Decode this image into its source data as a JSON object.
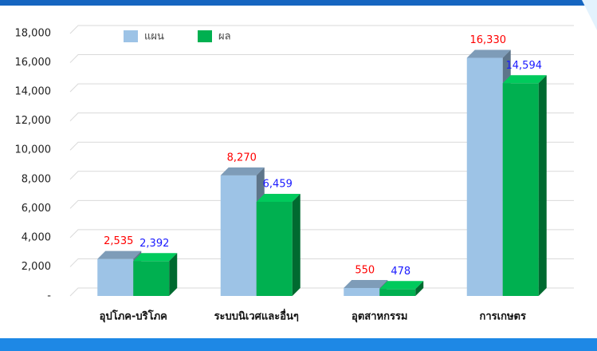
{
  "chart_data": {
    "type": "bar3d",
    "categories": [
      "อุปโภค-บริโภค",
      "ระบบนิเวศและอื่นๆ",
      "อุตสาหกรรม",
      "การเกษตร"
    ],
    "series": [
      {
        "name": "แผน",
        "color": "#9dc3e6",
        "label_color": "#ff0000",
        "values": [
          2535,
          8270,
          550,
          16330
        ],
        "value_labels": [
          "2,535",
          "8,270",
          "550",
          "16,330"
        ]
      },
      {
        "name": "ผล",
        "color": "#00b050",
        "label_color": "#1a1aff",
        "values": [
          2392,
          6459,
          478,
          14594
        ],
        "value_labels": [
          "2,392",
          "6,459",
          "478",
          "14,594"
        ]
      }
    ],
    "ylim": [
      0,
      18000
    ],
    "yticks": [
      {
        "value": 0,
        "label": "-"
      },
      {
        "value": 2000,
        "label": "2,000"
      },
      {
        "value": 4000,
        "label": "4,000"
      },
      {
        "value": 6000,
        "label": "6,000"
      },
      {
        "value": 8000,
        "label": "8,000"
      },
      {
        "value": 10000,
        "label": "10,000"
      },
      {
        "value": 12000,
        "label": "12,000"
      },
      {
        "value": 14000,
        "label": "14,000"
      },
      {
        "value": 16000,
        "label": "16,000"
      },
      {
        "value": 18000,
        "label": "18,000"
      }
    ],
    "grid": true,
    "legend": "top-left"
  }
}
